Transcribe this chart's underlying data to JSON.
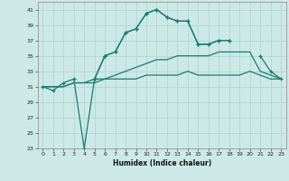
{
  "xlabel": "Humidex (Indice chaleur)",
  "background_color": "#cce9e7",
  "grid_color": "#aad4d2",
  "line_color": "#1a7a6e",
  "x_values": [
    0,
    1,
    2,
    3,
    4,
    5,
    6,
    7,
    8,
    9,
    10,
    11,
    12,
    13,
    14,
    15,
    16,
    17,
    18,
    19,
    20,
    21,
    22,
    23
  ],
  "series_main": [
    31,
    30.5,
    31.5,
    32,
    23,
    32,
    35,
    35.5,
    38,
    38.5,
    40.5,
    41,
    40,
    39.5,
    39.5,
    36.5,
    36.5,
    37,
    37,
    null,
    null,
    null,
    null,
    null
  ],
  "series_upper": [
    null,
    null,
    null,
    null,
    null,
    32,
    35,
    35.5,
    38,
    38.5,
    40.5,
    41,
    40,
    39.5,
    39.5,
    36.5,
    36.5,
    37,
    37,
    null,
    null,
    35,
    33,
    32
  ],
  "series_mid": [
    31,
    31,
    31,
    31.5,
    31.5,
    31.5,
    32.0,
    32.5,
    33.0,
    33.5,
    34.0,
    34.5,
    34.5,
    35.0,
    35.0,
    35.0,
    35.0,
    35.5,
    35.5,
    35.5,
    35.5,
    33.0,
    32.5,
    32.0
  ],
  "series_low": [
    31,
    31,
    31,
    31.5,
    31.5,
    32,
    32,
    32,
    32,
    32,
    32.5,
    32.5,
    32.5,
    32.5,
    33,
    32.5,
    32.5,
    32.5,
    32.5,
    32.5,
    33,
    32.5,
    32,
    32
  ],
  "ylim": [
    23,
    42
  ],
  "yticks": [
    23,
    25,
    27,
    29,
    31,
    33,
    35,
    37,
    39,
    41
  ],
  "xticks": [
    0,
    1,
    2,
    3,
    4,
    5,
    6,
    7,
    8,
    9,
    10,
    11,
    12,
    13,
    14,
    15,
    16,
    17,
    18,
    19,
    20,
    21,
    22,
    23
  ]
}
